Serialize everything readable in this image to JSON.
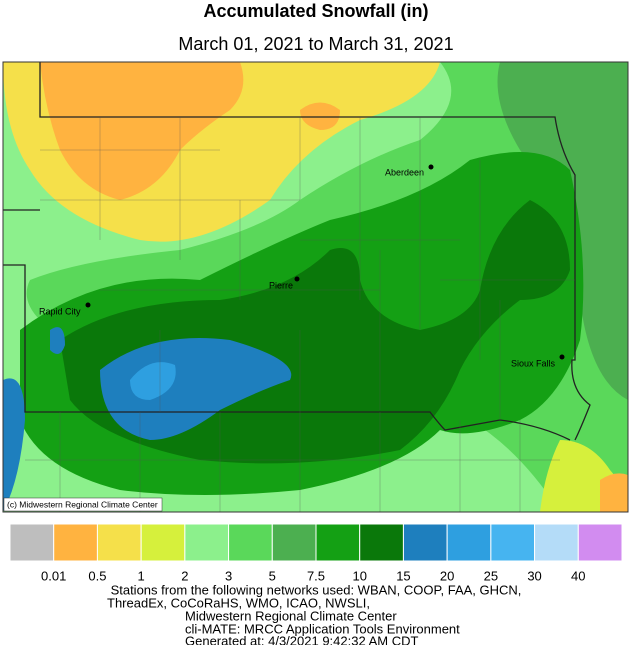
{
  "header": {
    "title": "Accumulated Snowfall (in)",
    "subtitle": "March 01, 2021 to March 31, 2021"
  },
  "map": {
    "cities": [
      {
        "label": "Aberdeen"
      },
      {
        "label": "Pierre"
      },
      {
        "label": "Rapid City"
      },
      {
        "label": "Sioux Falls"
      }
    ],
    "credit": "(c) Midwestern Regional Climate Center"
  },
  "legend": {
    "colors": [
      "#bebebe",
      "#ffb340",
      "#f5e04a",
      "#d6f03c",
      "#8cf08c",
      "#5ad85a",
      "#4caf50",
      "#14a014",
      "#0a780a",
      "#1e7fbe",
      "#2e9fe0",
      "#46b4f0",
      "#b4dcf8",
      "#d28cf0"
    ],
    "labels": [
      "0.01",
      "0.5",
      "1",
      "2",
      "3",
      "5",
      "7.5",
      "10",
      "15",
      "20",
      "25",
      "30",
      "40"
    ]
  },
  "footer": {
    "lines": [
      "Stations from the following networks used: WBAN, COOP, FAA, GHCN,",
      "ThreadEx, CoCoRaHS, WMO, ICAO, NWSLI,",
      "Midwestern Regional Climate Center",
      "cli-MATE: MRCC Application Tools Environment",
      "Generated at: 4/3/2021 9:42:32 AM CDT"
    ]
  }
}
